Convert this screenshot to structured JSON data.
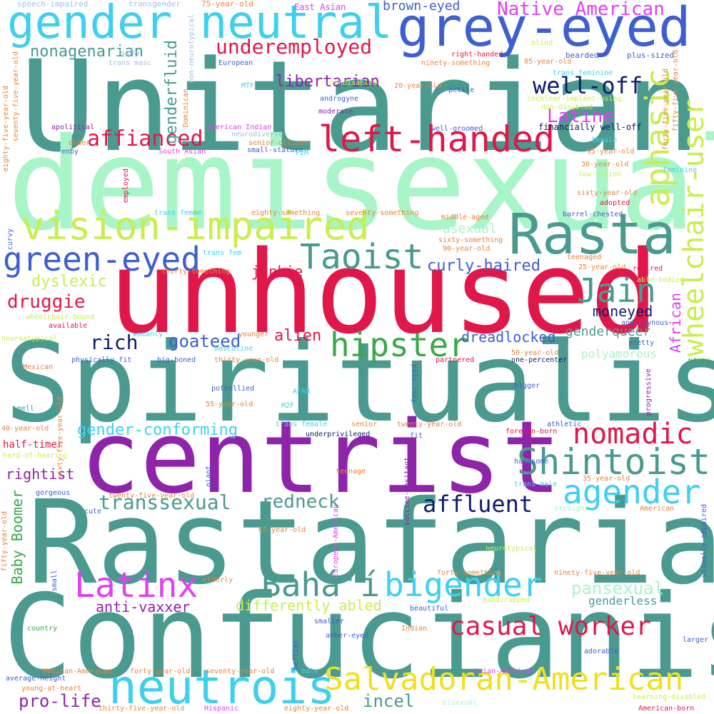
{
  "words": [
    {
      "text": "Unitarian",
      "color": "#4a9a8f"
    },
    {
      "text": "demisexual",
      "color": "#a8f5c8"
    },
    {
      "text": "unhoused",
      "color": "#e0184a"
    },
    {
      "text": "Spiritualist",
      "color": "#4a9a8f"
    },
    {
      "text": "centrist",
      "color": "#8e24aa"
    },
    {
      "text": "Rastafarian",
      "color": "#4a9a8f"
    },
    {
      "text": "Confucianist",
      "color": "#4a9a8f"
    },
    {
      "text": "grey-eyed",
      "color": "#3d5fd0"
    },
    {
      "text": "gender neutral",
      "color": "#3fd0f0"
    },
    {
      "text": "Rasta",
      "color": "#4a9a8f"
    },
    {
      "text": "vision-impaired",
      "color": "#c8ee50"
    },
    {
      "text": "left-handed",
      "color": "#e0184a"
    },
    {
      "text": "neutrois",
      "color": "#3fd0f0"
    },
    {
      "text": "Salvadoran-American",
      "color": "#f0e020"
    },
    {
      "text": "Latinx",
      "color": "#e040f0"
    },
    {
      "text": "Bahá'í",
      "color": "#4a9a8f"
    },
    {
      "text": "bigender",
      "color": "#3fd0f0"
    },
    {
      "text": "agender",
      "color": "#3fd0f0"
    },
    {
      "text": "Shintoist",
      "color": "#4a9a8f"
    },
    {
      "text": "nomadic",
      "color": "#e0184a"
    },
    {
      "text": "hipster",
      "color": "#3aa84a"
    },
    {
      "text": "Taoist",
      "color": "#4a9a8f"
    },
    {
      "text": "Jain",
      "color": "#4a9a8f"
    },
    {
      "text": "green-eyed",
      "color": "#3d5fd0"
    },
    {
      "text": "aphasic",
      "color": "#c8ee50"
    },
    {
      "text": "wheelchair-user",
      "color": "#c8ee50"
    },
    {
      "text": "Native American",
      "color": "#e040f0"
    },
    {
      "text": "underemployed",
      "color": "#e0184a"
    },
    {
      "text": "nonagenarian",
      "color": "#4a9a8f"
    },
    {
      "text": "libertarian",
      "color": "#8e24aa"
    },
    {
      "text": "well-off",
      "color": "#0d1b6e"
    },
    {
      "text": "Latine",
      "color": "#e040f0"
    },
    {
      "text": "affianced",
      "color": "#e0184a"
    },
    {
      "text": "genderfluid",
      "color": "#4a9a8f"
    },
    {
      "text": "brown-eyed",
      "color": "#3d5fd0"
    },
    {
      "text": "casual worker",
      "color": "#e0184a"
    },
    {
      "text": "affluent",
      "color": "#0d1b6e"
    },
    {
      "text": "transsexual",
      "color": "#4a9a8f"
    },
    {
      "text": "redneck",
      "color": "#4a9a8f"
    },
    {
      "text": "pro-life",
      "color": "#8e24aa"
    },
    {
      "text": "incel",
      "color": "#4a9a8f"
    },
    {
      "text": "rich",
      "color": "#0d1b6e"
    },
    {
      "text": "goateed",
      "color": "#3d5fd0"
    },
    {
      "text": "alien",
      "color": "#e0184a"
    },
    {
      "text": "junkie",
      "color": "#e0184a"
    },
    {
      "text": "druggie",
      "color": "#e0184a"
    },
    {
      "text": "dyslexic",
      "color": "#c8ee50"
    },
    {
      "text": "curly-haired",
      "color": "#3d5fd0"
    },
    {
      "text": "asexual",
      "color": "#a8f5c8"
    },
    {
      "text": "moneyed",
      "color": "#0d1b6e"
    },
    {
      "text": "dreadlocked",
      "color": "#3d5fd0"
    },
    {
      "text": "genderqueer",
      "color": "#4a9a8f"
    },
    {
      "text": "African",
      "color": "#e040f0"
    },
    {
      "text": "gender-conforming",
      "color": "#3fd0f0"
    },
    {
      "text": "rightist",
      "color": "#8e24aa"
    },
    {
      "text": "Baby Boomer",
      "color": "#3aa84a"
    },
    {
      "text": "pansexual",
      "color": "#a8f5c8"
    },
    {
      "text": "differently abled",
      "color": "#c8ee50"
    },
    {
      "text": "anti-vaxxer",
      "color": "#8e24aa"
    },
    {
      "text": "polyamorous",
      "color": "#a8f5c8"
    },
    {
      "text": "genderless",
      "color": "#4a9a8f"
    },
    {
      "text": "half-timer",
      "color": "#e0184a"
    },
    {
      "text": "financially well-off",
      "color": "#0d1b6e"
    },
    {
      "text": "speech-impaired",
      "color": "#a0c0e0"
    },
    {
      "text": "transgender",
      "color": "#a0c0e0"
    },
    {
      "text": "75-year-old",
      "color": "#e8843a"
    },
    {
      "text": "East Asian",
      "color": "#e040f0"
    },
    {
      "text": "non-neurotypical",
      "color": "#a0c0e0"
    },
    {
      "text": "hunky",
      "color": "#a0c0e0"
    },
    {
      "text": "trans masc",
      "color": "#a0c0e0"
    },
    {
      "text": "European",
      "color": "#3d5fd0"
    },
    {
      "text": "ninety-something",
      "color": "#e8843a"
    },
    {
      "text": "right-handed",
      "color": "#e0184a"
    },
    {
      "text": "blind",
      "color": "#c8ee50"
    },
    {
      "text": "85-year-old",
      "color": "#e8843a"
    },
    {
      "text": "bearded",
      "color": "#3d5fd0"
    },
    {
      "text": "plus-sized",
      "color": "#3d5fd0"
    },
    {
      "text": "trans feminine",
      "color": "#3fd0f0"
    },
    {
      "text": "MTF",
      "color": "#3fd0f0"
    },
    {
      "text": "nondisabled",
      "color": "#c8ee50"
    },
    {
      "text": "20-year-old",
      "color": "#e8843a"
    },
    {
      "text": "petite",
      "color": "#3d5fd0"
    },
    {
      "text": "androgyne",
      "color": "#3d5fd0"
    },
    {
      "text": "moderate",
      "color": "#8e24aa"
    },
    {
      "text": "cochlear-implant-using",
      "color": "#c8ee50"
    },
    {
      "text": "non-disabled",
      "color": "#c8ee50"
    },
    {
      "text": "forty-five-year-old",
      "color": "#e8843a"
    },
    {
      "text": "fifty-five-year-old",
      "color": "#e8843a"
    },
    {
      "text": "eighty-five-year-old",
      "color": "#e8843a"
    },
    {
      "text": "seventy-five-year-old",
      "color": "#e8843a"
    },
    {
      "text": "Dominican",
      "color": "#e8843a"
    },
    {
      "text": "apolitical",
      "color": "#8e24aa"
    },
    {
      "text": "American Indian",
      "color": "#e040f0"
    },
    {
      "text": "neurodiverse",
      "color": "#a0c0e0"
    },
    {
      "text": "well-groomed",
      "color": "#3d5fd0"
    },
    {
      "text": "senior-citizen",
      "color": "#e8843a"
    },
    {
      "text": "small-stature",
      "color": "#3d5fd0"
    },
    {
      "text": "older",
      "color": "#e8843a"
    },
    {
      "text": "enby",
      "color": "#3d5fd0"
    },
    {
      "text": "South Asian",
      "color": "#e040f0"
    },
    {
      "text": "F2M",
      "color": "#3fd0f0"
    },
    {
      "text": "female",
      "color": "#3fd0f0"
    },
    {
      "text": "95-year-old",
      "color": "#e8843a"
    },
    {
      "text": "30-year-old",
      "color": "#e8843a"
    },
    {
      "text": "low-vision",
      "color": "#c8ee50"
    },
    {
      "text": "feminine",
      "color": "#3fd0f0"
    },
    {
      "text": "employed",
      "color": "#e0184a"
    },
    {
      "text": "sixty-year-old",
      "color": "#e8843a"
    },
    {
      "text": "adopted",
      "color": "#e0184a"
    },
    {
      "text": "trans femme",
      "color": "#3fd0f0"
    },
    {
      "text": "eighty-something",
      "color": "#e8843a"
    },
    {
      "text": "seventy-something",
      "color": "#e8843a"
    },
    {
      "text": "middle-aged",
      "color": "#e8843a"
    },
    {
      "text": "barrel-chested",
      "color": "#3d5fd0"
    },
    {
      "text": "sixty-something",
      "color": "#e8843a"
    },
    {
      "text": "90-year-old",
      "color": "#e8843a"
    },
    {
      "text": "curvy",
      "color": "#3d5fd0"
    },
    {
      "text": "trans fem",
      "color": "#3fd0f0"
    },
    {
      "text": "thirty-something",
      "color": "#e8843a"
    },
    {
      "text": "teenaged",
      "color": "#e8843a"
    },
    {
      "text": "25-year-old",
      "color": "#e8843a"
    },
    {
      "text": "retired",
      "color": "#e0184a"
    },
    {
      "text": "able-bodied",
      "color": "#c8ee50"
    },
    {
      "text": "wheelchair-bound",
      "color": "#c8ee50"
    },
    {
      "text": "androgynous",
      "color": "#3d5fd0"
    },
    {
      "text": "available",
      "color": "#e0184a"
    },
    {
      "text": "womanly",
      "color": "#3fd0f0"
    },
    {
      "text": "younger",
      "color": "#e8843a"
    },
    {
      "text": "neuroatypical",
      "color": "#c8ee50"
    },
    {
      "text": "masculine",
      "color": "#3fd0f0"
    },
    {
      "text": "pretty",
      "color": "#3d5fd0"
    },
    {
      "text": "50-year-old",
      "color": "#e8843a"
    },
    {
      "text": "physically fit",
      "color": "#3d5fd0"
    },
    {
      "text": "big-boned",
      "color": "#3d5fd0"
    },
    {
      "text": "thirty-year-old",
      "color": "#e8843a"
    },
    {
      "text": "partnered",
      "color": "#e0184a"
    },
    {
      "text": "one-percenter",
      "color": "#0d1b6e"
    },
    {
      "text": "NIMBY",
      "color": "#3aa84a"
    },
    {
      "text": "Mexican",
      "color": "#e8843a"
    },
    {
      "text": "potbellied",
      "color": "#3d5fd0"
    },
    {
      "text": "AFAB",
      "color": "#3fd0f0"
    },
    {
      "text": "four-eyed",
      "color": "#3d5fd0"
    },
    {
      "text": "bigger",
      "color": "#3d5fd0"
    },
    {
      "text": "progressive",
      "color": "#8e24aa"
    },
    {
      "text": "mell",
      "color": "#4a9a8f"
    },
    {
      "text": "55-year-old",
      "color": "#e8843a"
    },
    {
      "text": "M2F",
      "color": "#3fd0f0"
    },
    {
      "text": "sixty-five-year-old",
      "color": "#e8843a"
    },
    {
      "text": "40-year-old",
      "color": "#e8843a"
    },
    {
      "text": "trans female",
      "color": "#3fd0f0"
    },
    {
      "text": "senior",
      "color": "#e8843a"
    },
    {
      "text": "twenty-year-old",
      "color": "#e8843a"
    },
    {
      "text": "athletic",
      "color": "#3d5fd0"
    },
    {
      "text": "underprivileged",
      "color": "#0d1b6e"
    },
    {
      "text": "fit",
      "color": "#3d5fd0"
    },
    {
      "text": "foreign-born",
      "color": "#e0184a"
    },
    {
      "text": "hard-of-hearing",
      "color": "#c8ee50"
    },
    {
      "text": "handsome",
      "color": "#3d5fd0"
    },
    {
      "text": "vaccine-hesitant",
      "color": "#8e24aa"
    },
    {
      "text": "teenage",
      "color": "#e8843a"
    },
    {
      "text": "35-year-old",
      "color": "#e8843a"
    },
    {
      "text": "giant",
      "color": "#3d5fd0"
    },
    {
      "text": "gorgeous",
      "color": "#3d5fd0"
    },
    {
      "text": "twenty-five-year-old",
      "color": "#e8843a"
    },
    {
      "text": "trans male",
      "color": "#3fd0f0"
    },
    {
      "text": "straight",
      "color": "#a8f5c8"
    },
    {
      "text": "American",
      "color": "#e8843a"
    },
    {
      "text": "cute",
      "color": "#3d5fd0"
    },
    {
      "text": "visually impaired",
      "color": "#3d5fd0"
    },
    {
      "text": "fifty-year-old",
      "color": "#e8843a"
    },
    {
      "text": "65-year-old",
      "color": "#e8843a"
    },
    {
      "text": "European-American",
      "color": "#e040f0"
    },
    {
      "text": "neurotypical",
      "color": "#c8ee50"
    },
    {
      "text": "small",
      "color": "#3d5fd0"
    },
    {
      "text": "elderly",
      "color": "#e8843a"
    },
    {
      "text": "forty-something",
      "color": "#e8843a"
    },
    {
      "text": "ninety-five-year-old",
      "color": "#e8843a"
    },
    {
      "text": "handicapped",
      "color": "#c8ee50"
    },
    {
      "text": "beautiful",
      "color": "#3d5fd0"
    },
    {
      "text": "country",
      "color": "#3aa84a"
    },
    {
      "text": "smaller",
      "color": "#3d5fd0"
    },
    {
      "text": "Indian",
      "color": "#e8843a"
    },
    {
      "text": "amber-eyed",
      "color": "#3d5fd0"
    },
    {
      "text": "heftier",
      "color": "#3d5fd0"
    },
    {
      "text": "larger",
      "color": "#3d5fd0"
    },
    {
      "text": "adorable",
      "color": "#3d5fd0"
    },
    {
      "text": "Mexican-American",
      "color": "#e8843a"
    },
    {
      "text": "forty-year-old",
      "color": "#e8843a"
    },
    {
      "text": "seventy-year-old",
      "color": "#e8843a"
    },
    {
      "text": "male",
      "color": "#3fd0f0"
    },
    {
      "text": "Asian-American",
      "color": "#e040f0"
    },
    {
      "text": "average-height",
      "color": "#3d5fd0"
    },
    {
      "text": "young-at-heart",
      "color": "#e8843a"
    },
    {
      "text": "bisexual",
      "color": "#a8f5c8"
    },
    {
      "text": "learning-disabled",
      "color": "#c8ee50"
    },
    {
      "text": "thirty-five-year-old",
      "color": "#e8843a"
    },
    {
      "text": "Hispanic",
      "color": "#e040f0"
    },
    {
      "text": "eighty-year-old",
      "color": "#e8843a"
    },
    {
      "text": "American-born",
      "color": "#e0184a"
    }
  ]
}
